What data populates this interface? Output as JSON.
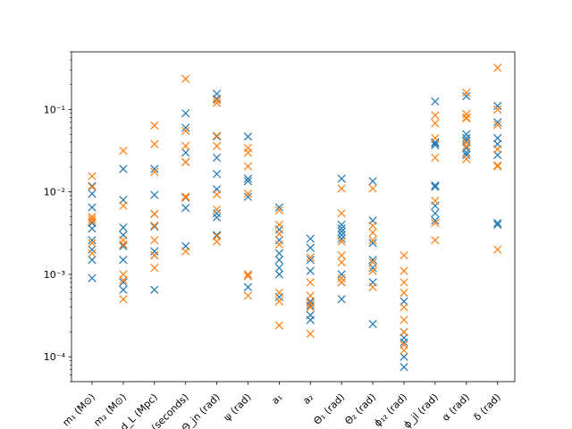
{
  "chart_data": {
    "type": "scatter",
    "title": "",
    "xlabel": "",
    "ylabel": "",
    "yscale": "log",
    "ylim": [
      5e-05,
      0.5
    ],
    "grid": false,
    "categories": [
      "m₁ (M⊙)",
      "m₂ (M⊙)",
      "d_L (Mpc)",
      "t_c (seconds)",
      "Θ_jn (rad)",
      "ψ (rad)",
      "a₁",
      "a₂",
      "Θ₁ (rad)",
      "Θ₂ (rad)",
      "ϕ₁₂ (rad)",
      "ϕ_jl (rad)",
      "α (rad)",
      "δ (rad)"
    ],
    "y_tick_labels": [
      "10⁻⁴",
      "10⁻³",
      "10⁻²",
      "10⁻¹"
    ],
    "series": [
      {
        "color": "#1f77b4",
        "marker": "x",
        "values": [
          [
            0.0009,
            0.0015,
            0.002,
            0.0026,
            0.0036,
            0.0042,
            0.0065,
            0.0095,
            0.0118
          ],
          [
            0.00065,
            0.0008,
            0.0015,
            0.0022,
            0.003,
            0.0037,
            0.008,
            0.019
          ],
          [
            0.00065,
            0.0017,
            0.0019,
            0.0038,
            0.0054,
            0.0092,
            0.019
          ],
          [
            0.0022,
            0.0064,
            0.0085,
            0.023,
            0.03,
            0.06,
            0.09
          ],
          [
            0.003,
            0.0049,
            0.0055,
            0.0108,
            0.0165,
            0.026,
            0.047,
            0.135,
            0.155
          ],
          [
            0.0007,
            0.001,
            0.0087,
            0.0135,
            0.0145,
            0.047
          ],
          [
            0.00053,
            0.001,
            0.0012,
            0.0015,
            0.0018,
            0.0026,
            0.0035,
            0.0065
          ],
          [
            0.00028,
            0.00032,
            0.00042,
            0.00047,
            0.0011,
            0.0015,
            0.0021,
            0.0027
          ],
          [
            0.0005,
            0.0008,
            0.001,
            0.0027,
            0.003,
            0.0033,
            0.0036,
            0.004,
            0.0145
          ],
          [
            0.00025,
            0.0008,
            0.0012,
            0.0015,
            0.0024,
            0.0045,
            0.0135
          ],
          [
            7.5e-05,
            0.0001,
            0.00015,
            0.00017,
            0.0002,
            0.00047
          ],
          [
            0.0045,
            0.0055,
            0.0068,
            0.0115,
            0.012,
            0.037,
            0.039,
            0.04,
            0.125
          ],
          [
            0.028,
            0.03,
            0.034,
            0.042,
            0.045,
            0.05,
            0.145
          ],
          [
            0.004,
            0.0042,
            0.028,
            0.038,
            0.045,
            0.07,
            0.11
          ]
        ]
      },
      {
        "color": "#ff7f0e",
        "marker": "x",
        "values": [
          [
            0.0018,
            0.0024,
            0.0044,
            0.0047,
            0.005,
            0.0115,
            0.0155
          ],
          [
            0.0005,
            0.00085,
            0.001,
            0.0023,
            0.0026,
            0.0068,
            0.0315
          ],
          [
            0.0012,
            0.0017,
            0.0026,
            0.0039,
            0.0054,
            0.0175,
            0.038,
            0.064
          ],
          [
            0.0019,
            0.0086,
            0.0088,
            0.023,
            0.036,
            0.055,
            0.235
          ],
          [
            0.0025,
            0.0029,
            0.0061,
            0.0093,
            0.036,
            0.048,
            0.12,
            0.13
          ],
          [
            0.00055,
            0.00095,
            0.001,
            0.0095,
            0.0205,
            0.03,
            0.034
          ],
          [
            0.00024,
            0.00047,
            0.0006,
            0.0023,
            0.0031,
            0.004,
            0.006
          ],
          [
            0.00019,
            0.0004,
            0.00045,
            0.00055,
            0.0008,
            0.0016
          ],
          [
            0.0008,
            0.0009,
            0.0014,
            0.0017,
            0.0025,
            0.0055,
            0.011
          ],
          [
            0.0007,
            0.0011,
            0.0014,
            0.0026,
            0.0032,
            0.0039,
            0.011
          ],
          [
            0.00012,
            0.00014,
            0.0002,
            0.00028,
            0.0004,
            0.0006,
            0.0008,
            0.0011,
            0.0017
          ],
          [
            0.0026,
            0.0042,
            0.0078,
            0.026,
            0.045,
            0.068,
            0.085
          ],
          [
            0.025,
            0.036,
            0.04,
            0.078,
            0.08,
            0.088,
            0.16
          ],
          [
            0.002,
            0.0205,
            0.021,
            0.033,
            0.065,
            0.1,
            0.32
          ]
        ]
      }
    ]
  }
}
